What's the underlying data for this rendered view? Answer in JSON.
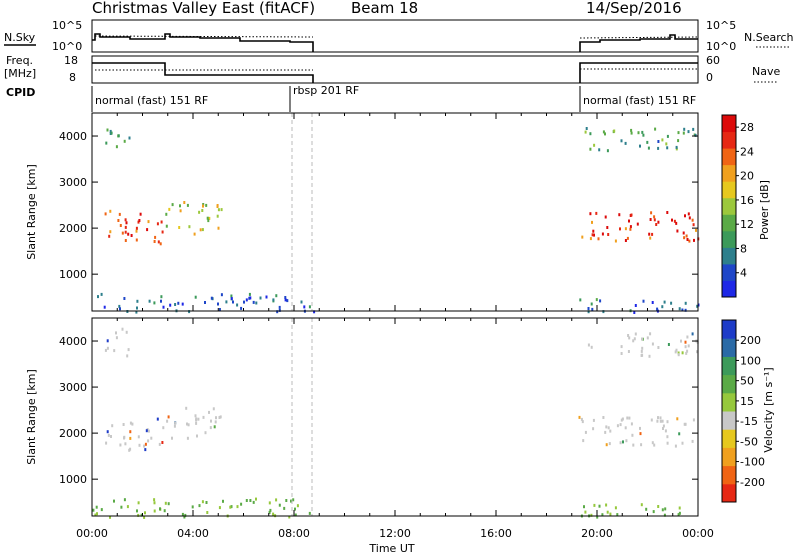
{
  "header": {
    "station": "Christmas Valley East (fitACF)",
    "beam": "Beam 18",
    "date": "14/Sep/2016"
  },
  "top_panels": {
    "nsky_label": "N.Sky",
    "nsky_ticks": [
      "10^5",
      "10^0"
    ],
    "nsearch_ticks": [
      "10^5",
      "10^0"
    ],
    "nsearch_label": "N.Search",
    "freq_label_1": "Freq.",
    "freq_label_2": "[MHz]",
    "freq_ticks": [
      "18",
      "8"
    ],
    "nave_ticks": [
      "60",
      "0"
    ],
    "nave_label": "Nave",
    "cpid_label": "CPID",
    "cpid_segments": [
      "normal (fast) 151 RF",
      "rbsp 201 RF",
      "normal (fast) 151 RF"
    ]
  },
  "colors": {
    "power_scale": [
      "#1e28e6",
      "#1e46c8",
      "#2d7f8c",
      "#3c9a5a",
      "#5aaa46",
      "#9cc83c",
      "#e6c81e",
      "#f0a01e",
      "#f06414",
      "#e62814",
      "#dc0a0a"
    ],
    "velocity_scale": [
      "#1e3cc8",
      "#2a6aa6",
      "#3c9a5a",
      "#5aaa46",
      "#96c83c",
      "#c8c8c8",
      "#e6c81e",
      "#f0a01e",
      "#f06414",
      "#e62814"
    ],
    "scatter_grey": "#c8c8c8"
  },
  "chart_data": [
    {
      "type": "heatmap",
      "panel": "power",
      "xlabel": "",
      "ylabel": "Slant Range [km]",
      "ylim": [
        200,
        4500
      ],
      "yticks": [
        "1000",
        "2000",
        "3000",
        "4000"
      ],
      "xlim_hours": [
        0,
        24
      ],
      "colorbar_label": "Power [dB]",
      "colorbar_ticks": [
        "28",
        "24",
        "20",
        "16",
        "12",
        "8",
        "4"
      ],
      "colorbar_range": [
        0,
        30
      ],
      "data_gaps_hours": [
        [
          8.8,
          19.2
        ]
      ],
      "dashed_markers_hours": [
        8.0,
        8.8
      ],
      "bands": [
        {
          "t": [
            0.5,
            2.9
          ],
          "range_km": [
            1650,
            2400
          ],
          "level_db": 24
        },
        {
          "t": [
            2.9,
            5.2
          ],
          "range_km": [
            1900,
            2600
          ],
          "level_db": 16
        },
        {
          "t": [
            0.5,
            1.5
          ],
          "range_km": [
            3700,
            4300
          ],
          "level_db": 10
        },
        {
          "t": [
            19.2,
            24
          ],
          "range_km": [
            1750,
            2400
          ],
          "level_db": 26
        },
        {
          "t": [
            19.5,
            24
          ],
          "range_km": [
            3700,
            4200
          ],
          "level_db": 10
        },
        {
          "t": [
            0,
            8.8
          ],
          "range_km": [
            200,
            600
          ],
          "level_db": 6
        },
        {
          "t": [
            19.2,
            24
          ],
          "range_km": [
            200,
            500
          ],
          "level_db": 6
        }
      ]
    },
    {
      "type": "heatmap",
      "panel": "velocity",
      "xlabel": "Time UT",
      "ylabel": "Slant Range [km]",
      "ylim": [
        200,
        4500
      ],
      "yticks": [
        "1000",
        "2000",
        "3000",
        "4000"
      ],
      "xlim_hours": [
        0,
        24
      ],
      "xticks": [
        "00:00",
        "04:00",
        "08:00",
        "12:00",
        "16:00",
        "20:00",
        "00:00"
      ],
      "colorbar_label": "Velocity [m s⁻¹]",
      "colorbar_ticks": [
        "200",
        "100",
        "50",
        "15",
        "-15",
        "-50",
        "-100",
        "-200"
      ],
      "colorbar_range": [
        -250,
        250
      ],
      "data_gaps_hours": [
        [
          8.8,
          19.2
        ]
      ],
      "dashed_markers_hours": [
        8.0,
        8.8
      ]
    }
  ]
}
